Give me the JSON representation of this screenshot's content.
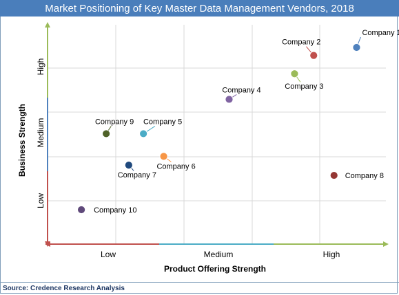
{
  "title": "Market Positioning of Key Master Data Management Vendors, 2018",
  "source": "Source: Credence Research Analysis",
  "colors": {
    "title_bg": "#4a7ebb",
    "x_axis_segments": [
      "#c0504d",
      "#4bacc6",
      "#9bbb59"
    ],
    "y_axis_segments": [
      "#c0504d",
      "#4f81bd",
      "#9bbb59"
    ],
    "grid": "#d9d9d9"
  },
  "chart_data": {
    "type": "scatter",
    "xlabel": "Product Offering Strength",
    "ylabel": "Business Strength",
    "x_tick_labels": [
      "Low",
      "Medium",
      "High"
    ],
    "y_tick_labels": [
      "Low",
      "Medium",
      "High"
    ],
    "xlim": [
      0,
      3
    ],
    "ylim": [
      0,
      3
    ],
    "grid": true,
    "points": [
      {
        "label": "Company 1",
        "x": 2.74,
        "y": 2.69,
        "color": "#4f81bd"
      },
      {
        "label": "Company 2",
        "x": 2.36,
        "y": 2.58,
        "color": "#c0504d"
      },
      {
        "label": "Company 3",
        "x": 2.19,
        "y": 2.33,
        "color": "#9bbb59"
      },
      {
        "label": "Company 4",
        "x": 1.61,
        "y": 1.98,
        "color": "#8064a2"
      },
      {
        "label": "Company 5",
        "x": 0.85,
        "y": 1.51,
        "color": "#4bacc6"
      },
      {
        "label": "Company 6",
        "x": 1.03,
        "y": 1.2,
        "color": "#f79646"
      },
      {
        "label": "Company 7",
        "x": 0.72,
        "y": 1.08,
        "color": "#1f497d"
      },
      {
        "label": "Company 8",
        "x": 2.54,
        "y": 0.94,
        "color": "#953734"
      },
      {
        "label": "Company 9",
        "x": 0.52,
        "y": 1.51,
        "color": "#4f6228"
      },
      {
        "label": "Company 10",
        "x": 0.3,
        "y": 0.47,
        "color": "#5f497a"
      }
    ]
  }
}
